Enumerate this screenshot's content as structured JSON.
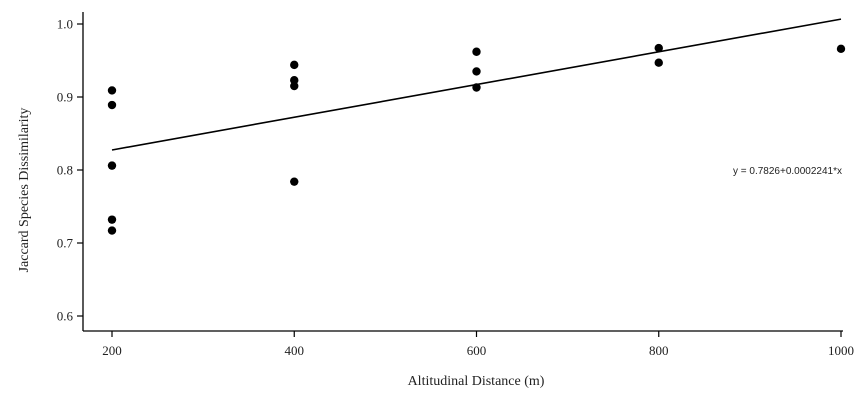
{
  "chart_data": {
    "type": "scatter",
    "title": "",
    "xlabel": "Altitudinal Distance (m)",
    "ylabel": "Jaccard Species Dissimilarity",
    "xlim": [
      150,
      1000
    ],
    "ylim": [
      0.59,
      1.02
    ],
    "x_ticks": [
      "200",
      "400",
      "600",
      "800",
      "1000"
    ],
    "y_ticks": [
      "0.6",
      "0.7",
      "0.8",
      "0.9",
      "1.0"
    ],
    "grid": false,
    "points": [
      {
        "x": 200,
        "y": 0.909
      },
      {
        "x": 200,
        "y": 0.889
      },
      {
        "x": 200,
        "y": 0.806
      },
      {
        "x": 200,
        "y": 0.732
      },
      {
        "x": 200,
        "y": 0.717
      },
      {
        "x": 400,
        "y": 0.944
      },
      {
        "x": 400,
        "y": 0.923
      },
      {
        "x": 400,
        "y": 0.915
      },
      {
        "x": 400,
        "y": 0.784
      },
      {
        "x": 600,
        "y": 0.962
      },
      {
        "x": 600,
        "y": 0.935
      },
      {
        "x": 600,
        "y": 0.913
      },
      {
        "x": 800,
        "y": 0.967
      },
      {
        "x": 800,
        "y": 0.947
      },
      {
        "x": 1000,
        "y": 0.966
      }
    ],
    "fit": {
      "intercept": 0.7826,
      "slope": 0.0002241,
      "x_range": [
        200,
        1000
      ],
      "equation_label": "y = 0.7826+0.0002241*x"
    }
  }
}
